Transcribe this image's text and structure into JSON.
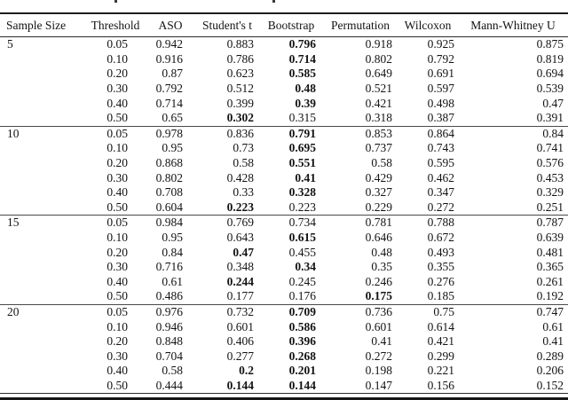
{
  "table": {
    "columns": [
      "Sample Size",
      "Threshold",
      "ASO",
      "Student's t",
      "Bootstrap",
      "Permutation",
      "Wilcoxon",
      "Mann-Whitney U"
    ],
    "groups": [
      {
        "sample_size": "5",
        "rows": [
          {
            "threshold": "0.05",
            "values": [
              "0.942",
              "0.883",
              "0.796",
              "0.918",
              "0.925",
              "0.875"
            ],
            "bold": [
              2
            ]
          },
          {
            "threshold": "0.10",
            "values": [
              "0.916",
              "0.786",
              "0.714",
              "0.802",
              "0.792",
              "0.819"
            ],
            "bold": [
              2
            ]
          },
          {
            "threshold": "0.20",
            "values": [
              "0.87",
              "0.623",
              "0.585",
              "0.649",
              "0.691",
              "0.694"
            ],
            "bold": [
              2
            ]
          },
          {
            "threshold": "0.30",
            "values": [
              "0.792",
              "0.512",
              "0.48",
              "0.521",
              "0.597",
              "0.539"
            ],
            "bold": [
              2
            ]
          },
          {
            "threshold": "0.40",
            "values": [
              "0.714",
              "0.399",
              "0.39",
              "0.421",
              "0.498",
              "0.47"
            ],
            "bold": [
              2
            ]
          },
          {
            "threshold": "0.50",
            "values": [
              "0.65",
              "0.302",
              "0.315",
              "0.318",
              "0.387",
              "0.391"
            ],
            "bold": [
              1
            ]
          }
        ]
      },
      {
        "sample_size": "10",
        "rows": [
          {
            "threshold": "0.05",
            "values": [
              "0.978",
              "0.836",
              "0.791",
              "0.853",
              "0.864",
              "0.84"
            ],
            "bold": [
              2
            ]
          },
          {
            "threshold": "0.10",
            "values": [
              "0.95",
              "0.73",
              "0.695",
              "0.737",
              "0.743",
              "0.741"
            ],
            "bold": [
              2
            ]
          },
          {
            "threshold": "0.20",
            "values": [
              "0.868",
              "0.58",
              "0.551",
              "0.58",
              "0.595",
              "0.576"
            ],
            "bold": [
              2
            ]
          },
          {
            "threshold": "0.30",
            "values": [
              "0.802",
              "0.428",
              "0.41",
              "0.429",
              "0.462",
              "0.453"
            ],
            "bold": [
              2
            ]
          },
          {
            "threshold": "0.40",
            "values": [
              "0.708",
              "0.33",
              "0.328",
              "0.327",
              "0.347",
              "0.329"
            ],
            "bold": [
              2
            ]
          },
          {
            "threshold": "0.50",
            "values": [
              "0.604",
              "0.223",
              "0.223",
              "0.229",
              "0.272",
              "0.251"
            ],
            "bold": [
              1
            ]
          }
        ]
      },
      {
        "sample_size": "15",
        "rows": [
          {
            "threshold": "0.05",
            "values": [
              "0.984",
              "0.769",
              "0.734",
              "0.781",
              "0.788",
              "0.787"
            ],
            "bold": []
          },
          {
            "threshold": "0.10",
            "values": [
              "0.95",
              "0.643",
              "0.615",
              "0.646",
              "0.672",
              "0.639"
            ],
            "bold": [
              2
            ]
          },
          {
            "threshold": "0.20",
            "values": [
              "0.84",
              "0.47",
              "0.455",
              "0.48",
              "0.493",
              "0.481"
            ],
            "bold": [
              1
            ]
          },
          {
            "threshold": "0.30",
            "values": [
              "0.716",
              "0.348",
              "0.34",
              "0.35",
              "0.355",
              "0.365"
            ],
            "bold": [
              2
            ]
          },
          {
            "threshold": "0.40",
            "values": [
              "0.61",
              "0.244",
              "0.245",
              "0.246",
              "0.276",
              "0.261"
            ],
            "bold": [
              1
            ]
          },
          {
            "threshold": "0.50",
            "values": [
              "0.486",
              "0.177",
              "0.176",
              "0.175",
              "0.185",
              "0.192"
            ],
            "bold": [
              3
            ]
          }
        ]
      },
      {
        "sample_size": "20",
        "rows": [
          {
            "threshold": "0.05",
            "values": [
              "0.976",
              "0.732",
              "0.709",
              "0.736",
              "0.75",
              "0.747"
            ],
            "bold": [
              2
            ]
          },
          {
            "threshold": "0.10",
            "values": [
              "0.946",
              "0.601",
              "0.586",
              "0.601",
              "0.614",
              "0.61"
            ],
            "bold": [
              2
            ]
          },
          {
            "threshold": "0.20",
            "values": [
              "0.848",
              "0.406",
              "0.396",
              "0.41",
              "0.421",
              "0.41"
            ],
            "bold": [
              2
            ]
          },
          {
            "threshold": "0.30",
            "values": [
              "0.704",
              "0.277",
              "0.268",
              "0.272",
              "0.299",
              "0.289"
            ],
            "bold": [
              2
            ]
          },
          {
            "threshold": "0.40",
            "values": [
              "0.58",
              "0.2",
              "0.201",
              "0.198",
              "0.221",
              "0.206"
            ],
            "bold": [
              1,
              2
            ]
          },
          {
            "threshold": "0.50",
            "values": [
              "0.444",
              "0.144",
              "0.144",
              "0.147",
              "0.156",
              "0.152"
            ],
            "bold": [
              1,
              2
            ]
          }
        ]
      }
    ]
  }
}
